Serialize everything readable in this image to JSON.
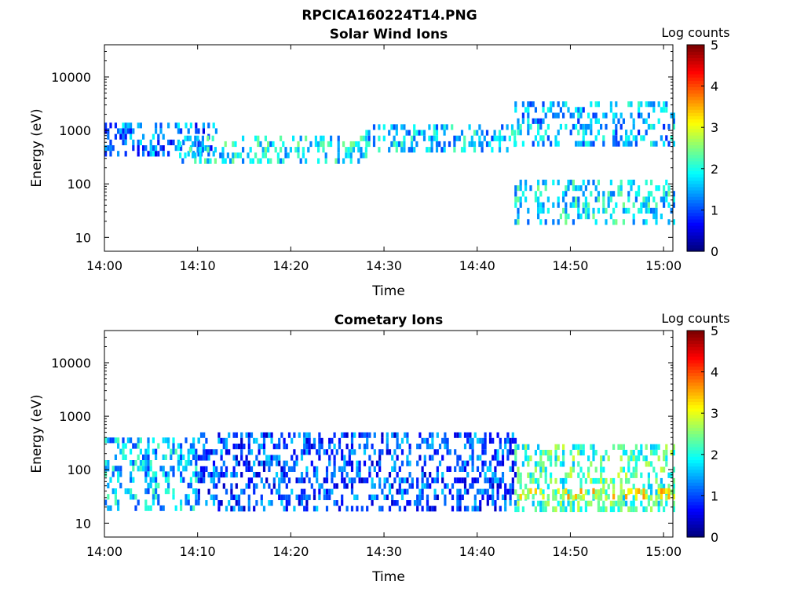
{
  "figure": {
    "title": "RPCICA160224T14.PNG"
  },
  "chart_data": [
    {
      "type": "heatmap",
      "title": "Solar Wind Ions",
      "xlabel": "Time",
      "ylabel": "Energy (eV)",
      "x_ticks": [
        "14:00",
        "14:10",
        "14:20",
        "14:30",
        "14:40",
        "14:50",
        "15:00"
      ],
      "x_range": [
        "14:00",
        "15:01"
      ],
      "y_scale": "log",
      "y_ticks": [
        "10",
        "100",
        "1000",
        "10000"
      ],
      "ylim": [
        5.5,
        40000
      ],
      "colorbar": {
        "label": "Log counts",
        "ticks": [
          "0",
          "1",
          "2",
          "3",
          "4",
          "5"
        ],
        "range": [
          0,
          5
        ]
      },
      "features": [
        {
          "start_min": 0,
          "end_min": 12,
          "energy_low": 400,
          "energy_high": 1400,
          "log_counts": 1.2
        },
        {
          "start_min": 8,
          "end_min": 28,
          "energy_low": 250,
          "energy_high": 800,
          "log_counts": 1.8
        },
        {
          "start_min": 28,
          "end_min": 44,
          "energy_low": 400,
          "energy_high": 1300,
          "log_counts": 1.6
        },
        {
          "start_min": 44,
          "end_min": 61,
          "energy_low": 500,
          "energy_high": 3500,
          "log_counts": 1.5
        },
        {
          "start_min": 44,
          "end_min": 61,
          "energy_low": 20,
          "energy_high": 120,
          "log_counts": 1.8
        }
      ]
    },
    {
      "type": "heatmap",
      "title": "Cometary Ions",
      "xlabel": "Time",
      "ylabel": "Energy (eV)",
      "x_ticks": [
        "14:00",
        "14:10",
        "14:20",
        "14:30",
        "14:40",
        "14:50",
        "15:00"
      ],
      "x_range": [
        "14:00",
        "15:01"
      ],
      "y_scale": "log",
      "y_ticks": [
        "10",
        "100",
        "1000",
        "10000"
      ],
      "ylim": [
        5.5,
        40000
      ],
      "colorbar": {
        "label": "Log counts",
        "ticks": [
          "0",
          "1",
          "2",
          "3",
          "4",
          "5"
        ],
        "range": [
          0,
          5
        ]
      },
      "features": [
        {
          "start_min": 0,
          "end_min": 10,
          "energy_low": 20,
          "energy_high": 400,
          "log_counts": 1.6
        },
        {
          "start_min": 10,
          "end_min": 44,
          "energy_low": 20,
          "energy_high": 500,
          "log_counts": 1.0
        },
        {
          "start_min": 44,
          "end_min": 61,
          "energy_low": 20,
          "energy_high": 300,
          "log_counts": 2.2
        },
        {
          "start_min": 44,
          "end_min": 61,
          "energy_low": 28,
          "energy_high": 45,
          "log_counts": 3.0
        }
      ]
    }
  ]
}
